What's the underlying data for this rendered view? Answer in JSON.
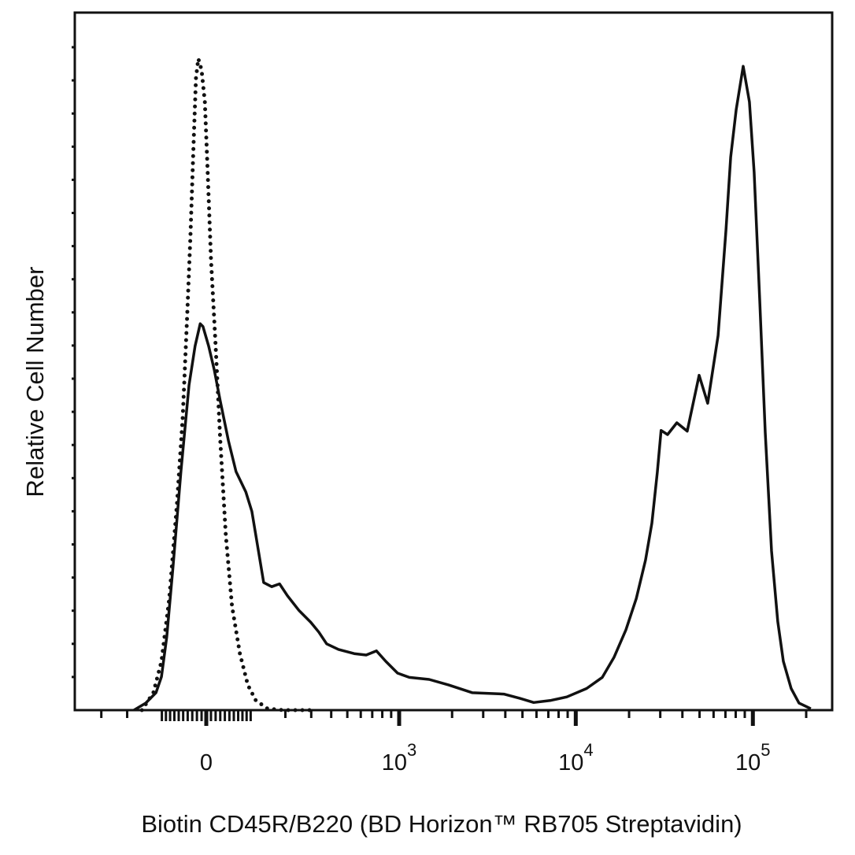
{
  "chart_data": {
    "type": "line",
    "title": "",
    "xlabel": "Biotin CD45R/B220 (BD Horizon™ RB705 Streptavidin)",
    "ylabel": "Relative Cell Number",
    "x_scale": "biexponential",
    "xlim": [
      -440,
      280000
    ],
    "ylim": [
      0,
      100
    ],
    "grid": false,
    "legend": "none",
    "x_tick_labels": [
      {
        "value": 0,
        "base": "0",
        "exp": ""
      },
      {
        "value": 1000,
        "base": "10",
        "exp": "3"
      },
      {
        "value": 10000,
        "base": "10",
        "exp": "4"
      },
      {
        "value": 100000,
        "base": "10",
        "exp": "5"
      }
    ],
    "series": [
      {
        "style": "solid",
        "color": "#111111",
        "points": [
          [
            -178,
            0
          ],
          [
            -143,
            1.0
          ],
          [
            -115,
            2.5
          ],
          [
            -101,
            4.8
          ],
          [
            -88,
            10.5
          ],
          [
            -73,
            20.6
          ],
          [
            -55,
            34.2
          ],
          [
            -37,
            46.6
          ],
          [
            -24,
            52.2
          ],
          [
            -13,
            55.4
          ],
          [
            -7,
            55.0
          ],
          [
            5,
            52.2
          ],
          [
            17,
            48.8
          ],
          [
            30,
            44.3
          ],
          [
            48,
            38.6
          ],
          [
            65,
            34.2
          ],
          [
            88,
            31.3
          ],
          [
            103,
            28.5
          ],
          [
            120,
            22.8
          ],
          [
            134,
            18.3
          ],
          [
            157,
            17.7
          ],
          [
            181,
            18.1
          ],
          [
            207,
            16.4
          ],
          [
            249,
            14.3
          ],
          [
            298,
            12.6
          ],
          [
            335,
            11.2
          ],
          [
            375,
            9.5
          ],
          [
            443,
            8.7
          ],
          [
            549,
            8.1
          ],
          [
            645,
            7.9
          ],
          [
            740,
            8.5
          ],
          [
            838,
            7.0
          ],
          [
            979,
            5.3
          ],
          [
            1143,
            4.7
          ],
          [
            1482,
            4.4
          ],
          [
            1914,
            3.6
          ],
          [
            2608,
            2.5
          ],
          [
            3920,
            2.3
          ],
          [
            4822,
            1.7
          ],
          [
            5789,
            1.1
          ],
          [
            7249,
            1.4
          ],
          [
            8905,
            1.9
          ],
          [
            11513,
            3.1
          ],
          [
            14120,
            4.7
          ],
          [
            16466,
            7.6
          ],
          [
            19188,
            11.5
          ],
          [
            21976,
            16.0
          ],
          [
            24764,
            21.5
          ],
          [
            26896,
            26.8
          ],
          [
            28864,
            34.1
          ],
          [
            30340,
            40.1
          ],
          [
            32964,
            39.5
          ],
          [
            37200,
            41.2
          ],
          [
            42600,
            40.0
          ],
          [
            49692,
            48.0
          ],
          [
            55600,
            44.0
          ],
          [
            63632,
            53.7
          ],
          [
            70500,
            68.8
          ],
          [
            74950,
            79.3
          ],
          [
            80500,
            86.1
          ],
          [
            88200,
            92.3
          ],
          [
            95612,
            87.2
          ],
          [
            101680,
            77.1
          ],
          [
            109224,
            59.0
          ],
          [
            117424,
            39.8
          ],
          [
            127428,
            22.8
          ],
          [
            138252,
            12.7
          ],
          [
            148584,
            7.0
          ],
          [
            164492,
            3.1
          ],
          [
            182204,
            1.0
          ],
          [
            212544,
            0.2
          ]
        ]
      },
      {
        "style": "dotted",
        "color": "#111111",
        "points": [
          [
            -154,
            0
          ],
          [
            -122,
            2.5
          ],
          [
            -101,
            7.0
          ],
          [
            -82,
            16.0
          ],
          [
            -64,
            29.6
          ],
          [
            -51,
            42.0
          ],
          [
            -41,
            56.7
          ],
          [
            -34,
            68.0
          ],
          [
            -27,
            81.6
          ],
          [
            -22,
            90.6
          ],
          [
            -17,
            93.4
          ],
          [
            -10,
            91.8
          ],
          [
            -3,
            87.2
          ],
          [
            3,
            77.1
          ],
          [
            10,
            64.6
          ],
          [
            20,
            52.2
          ],
          [
            30,
            38.6
          ],
          [
            42,
            25.1
          ],
          [
            56,
            14.9
          ],
          [
            74,
            8.1
          ],
          [
            93,
            3.6
          ],
          [
            113,
            1.4
          ],
          [
            145,
            0.2
          ],
          [
            194,
            0
          ],
          [
            316,
            0
          ]
        ]
      }
    ]
  }
}
